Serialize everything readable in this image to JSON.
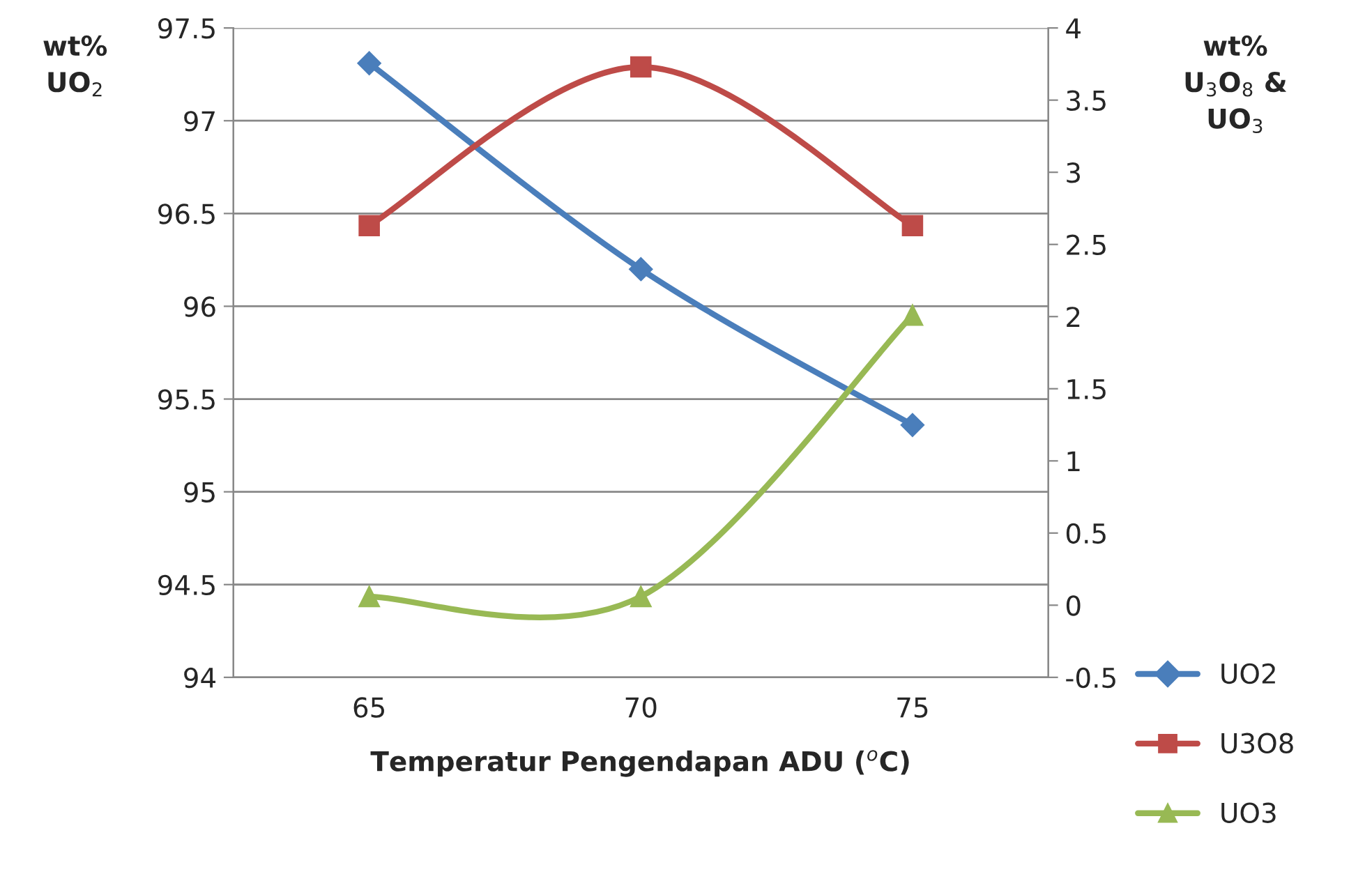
{
  "chart_data": {
    "type": "line",
    "categories": [
      "65",
      "70",
      "75"
    ],
    "xlabel": "Temperatur Pengendapan ADU ($^{o}$C)",
    "ylabel": "wt%\nUO$_{2}$",
    "y2label": "wt%\nU$_{3}$O$_{8}$ &\nUO$_{3}$",
    "ylim": [
      94,
      97.5
    ],
    "yticks": [
      94,
      94.5,
      95,
      95.5,
      96,
      96.5,
      97,
      97.5
    ],
    "y2lim": [
      -0.5,
      4
    ],
    "y2ticks": [
      -0.5,
      0,
      0.5,
      1,
      1.5,
      2,
      2.5,
      3,
      3.5,
      4
    ],
    "grid": "y",
    "legend": "bottom right",
    "series": [
      {
        "name": "UO2",
        "color": "#4a7ebb",
        "marker": "diamond",
        "values": [
          97.31,
          96.2,
          95.36
        ]
      },
      {
        "name": "U3O8",
        "color": "#be4b48",
        "marker": "square",
        "axis": "y2",
        "values": [
          2.63,
          3.73,
          2.63
        ]
      },
      {
        "name": "UO3",
        "color": "#98b954",
        "marker": "triangle",
        "axis": "y2",
        "values": [
          0.06,
          0.06,
          2.01
        ]
      }
    ]
  }
}
